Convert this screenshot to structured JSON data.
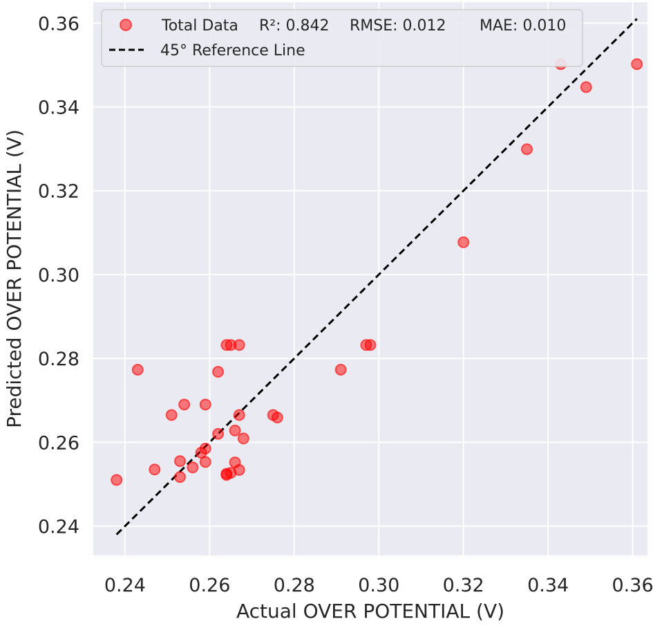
{
  "chart_data": {
    "type": "scatter",
    "xlabel": "Actual OVER POTENTIAL (V)",
    "ylabel": "Predicted OVER POTENTIAL (V)",
    "xlim": [
      0.2325,
      0.3635
    ],
    "ylim": [
      0.233,
      0.365
    ],
    "xticks": [
      "0.24",
      "0.26",
      "0.28",
      "0.30",
      "0.32",
      "0.34",
      "0.36"
    ],
    "yticks": [
      "0.24",
      "0.26",
      "0.28",
      "0.30",
      "0.32",
      "0.34",
      "0.36"
    ],
    "grid": true,
    "legend_position": "top-left",
    "colors": {
      "background": "#eaeaf2",
      "grid": "#ffffff",
      "points": "#ff0000",
      "reference_line": "#000000"
    },
    "legend": {
      "series_name": "Total Data",
      "r2": "R²: 0.842",
      "rmse": "RMSE: 0.012",
      "mae": "MAE: 0.010",
      "reference_name": "45° Reference Line"
    },
    "reference_line": {
      "x": [
        0.238,
        0.361
      ],
      "y": [
        0.238,
        0.361
      ]
    },
    "series": [
      {
        "name": "Total Data",
        "x": [
          0.238,
          0.243,
          0.247,
          0.251,
          0.253,
          0.253,
          0.254,
          0.256,
          0.258,
          0.259,
          0.259,
          0.259,
          0.262,
          0.262,
          0.264,
          0.264,
          0.264,
          0.265,
          0.265,
          0.266,
          0.266,
          0.267,
          0.267,
          0.267,
          0.268,
          0.275,
          0.276,
          0.291,
          0.297,
          0.298,
          0.32,
          0.335,
          0.343,
          0.349,
          0.361
        ],
        "y": [
          0.251,
          0.2773,
          0.2535,
          0.2665,
          0.2555,
          0.2517,
          0.269,
          0.254,
          0.2575,
          0.2585,
          0.2553,
          0.269,
          0.262,
          0.2768,
          0.2522,
          0.2525,
          0.2832,
          0.2527,
          0.2832,
          0.2628,
          0.2552,
          0.2665,
          0.2534,
          0.2832,
          0.2609,
          0.2665,
          0.2659,
          0.2773,
          0.2832,
          0.2832,
          0.3077,
          0.3299,
          0.3502,
          0.3447,
          0.3502
        ]
      }
    ]
  }
}
